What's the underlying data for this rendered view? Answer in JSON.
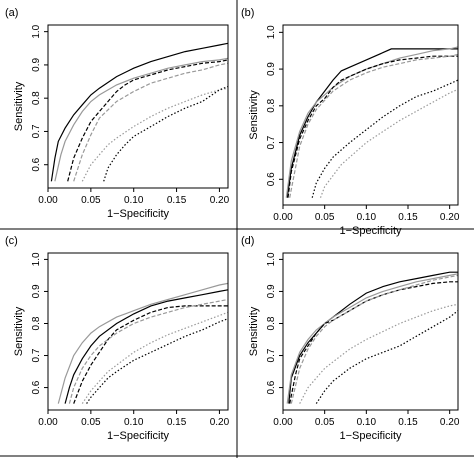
{
  "chart_data": [
    {
      "type": "line",
      "panel_label": "(a)",
      "xlabel": "1−Specificity",
      "ylabel": "Sensitivity",
      "xlim": [
        0,
        0.21
      ],
      "ylim": [
        0.53,
        1.02
      ],
      "x_ticks": [
        "0.00",
        "0.05",
        "0.10",
        "0.15",
        "0.20"
      ],
      "y_ticks": [
        "0.6",
        "0.7",
        "0.8",
        "0.9",
        "1.0"
      ],
      "series": [
        {
          "color": "#000000",
          "dash": "solid",
          "x": [
            0.004,
            0.008,
            0.012,
            0.02,
            0.03,
            0.04,
            0.05,
            0.06,
            0.08,
            0.1,
            0.12,
            0.14,
            0.16,
            0.18,
            0.2,
            0.21
          ],
          "y": [
            0.55,
            0.62,
            0.67,
            0.71,
            0.75,
            0.78,
            0.81,
            0.83,
            0.865,
            0.89,
            0.91,
            0.925,
            0.94,
            0.95,
            0.96,
            0.965
          ]
        },
        {
          "color": "#999999",
          "dash": "solid",
          "x": [
            0.008,
            0.015,
            0.02,
            0.03,
            0.04,
            0.05,
            0.06,
            0.08,
            0.1,
            0.12,
            0.14,
            0.16,
            0.18,
            0.2,
            0.21
          ],
          "y": [
            0.55,
            0.63,
            0.67,
            0.72,
            0.76,
            0.79,
            0.81,
            0.84,
            0.86,
            0.875,
            0.89,
            0.9,
            0.91,
            0.915,
            0.92
          ]
        },
        {
          "color": "#000000",
          "dash": "dash",
          "x": [
            0.023,
            0.03,
            0.04,
            0.05,
            0.06,
            0.07,
            0.08,
            0.09,
            0.1,
            0.12,
            0.14,
            0.16,
            0.18,
            0.2,
            0.21
          ],
          "y": [
            0.55,
            0.62,
            0.68,
            0.73,
            0.76,
            0.79,
            0.82,
            0.84,
            0.855,
            0.87,
            0.885,
            0.895,
            0.905,
            0.91,
            0.915
          ]
        },
        {
          "color": "#999999",
          "dash": "dash",
          "x": [
            0.03,
            0.04,
            0.05,
            0.06,
            0.08,
            0.1,
            0.12,
            0.14,
            0.16,
            0.18,
            0.2,
            0.21
          ],
          "y": [
            0.55,
            0.63,
            0.69,
            0.74,
            0.79,
            0.82,
            0.845,
            0.86,
            0.875,
            0.885,
            0.9,
            0.905
          ]
        },
        {
          "color": "#999999",
          "dash": "dot",
          "x": [
            0.04,
            0.05,
            0.06,
            0.07,
            0.08,
            0.1,
            0.12,
            0.14,
            0.16,
            0.18,
            0.2,
            0.21
          ],
          "y": [
            0.55,
            0.6,
            0.63,
            0.66,
            0.68,
            0.715,
            0.745,
            0.77,
            0.79,
            0.81,
            0.825,
            0.83
          ]
        },
        {
          "color": "#000000",
          "dash": "dot",
          "x": [
            0.065,
            0.07,
            0.08,
            0.09,
            0.1,
            0.12,
            0.14,
            0.16,
            0.18,
            0.2,
            0.21
          ],
          "y": [
            0.55,
            0.59,
            0.63,
            0.66,
            0.685,
            0.715,
            0.745,
            0.77,
            0.79,
            0.825,
            0.835
          ]
        }
      ]
    },
    {
      "type": "line",
      "panel_label": "(b)",
      "xlabel": "1−Specificity",
      "ylabel": "Sensitivity",
      "xlim": [
        0,
        0.21
      ],
      "ylim": [
        0.53,
        1.02
      ],
      "x_ticks": [
        "0.00",
        "0.05",
        "0.10",
        "0.15",
        "0.20"
      ],
      "y_ticks": [
        "0.6",
        "0.7",
        "0.8",
        "0.9",
        "1.0"
      ],
      "series": [
        {
          "color": "#000000",
          "dash": "solid",
          "x": [
            0.005,
            0.01,
            0.02,
            0.03,
            0.04,
            0.05,
            0.06,
            0.07,
            0.08,
            0.1,
            0.12,
            0.13,
            0.14,
            0.16,
            0.18,
            0.2,
            0.21
          ],
          "y": [
            0.55,
            0.63,
            0.72,
            0.77,
            0.81,
            0.84,
            0.87,
            0.895,
            0.905,
            0.925,
            0.945,
            0.955,
            0.955,
            0.955,
            0.955,
            0.955,
            0.955
          ]
        },
        {
          "color": "#999999",
          "dash": "solid",
          "x": [
            0.004,
            0.01,
            0.02,
            0.03,
            0.04,
            0.05,
            0.06,
            0.08,
            0.1,
            0.12,
            0.14,
            0.16,
            0.18,
            0.2,
            0.21
          ],
          "y": [
            0.55,
            0.65,
            0.73,
            0.78,
            0.81,
            0.83,
            0.85,
            0.88,
            0.9,
            0.915,
            0.93,
            0.94,
            0.95,
            0.955,
            0.96
          ]
        },
        {
          "color": "#000000",
          "dash": "dash",
          "x": [
            0.006,
            0.01,
            0.02,
            0.03,
            0.04,
            0.05,
            0.06,
            0.07,
            0.08,
            0.1,
            0.12,
            0.14,
            0.16,
            0.18,
            0.2,
            0.21
          ],
          "y": [
            0.55,
            0.62,
            0.71,
            0.76,
            0.8,
            0.82,
            0.85,
            0.87,
            0.88,
            0.9,
            0.915,
            0.925,
            0.93,
            0.935,
            0.935,
            0.935
          ]
        },
        {
          "color": "#999999",
          "dash": "dash",
          "x": [
            0.008,
            0.02,
            0.03,
            0.04,
            0.06,
            0.08,
            0.1,
            0.12,
            0.14,
            0.16,
            0.18,
            0.2,
            0.21
          ],
          "y": [
            0.55,
            0.69,
            0.75,
            0.79,
            0.84,
            0.87,
            0.89,
            0.905,
            0.915,
            0.925,
            0.93,
            0.935,
            0.94
          ]
        },
        {
          "color": "#000000",
          "dash": "dot",
          "x": [
            0.035,
            0.04,
            0.05,
            0.06,
            0.07,
            0.08,
            0.1,
            0.12,
            0.14,
            0.16,
            0.18,
            0.2,
            0.21
          ],
          "y": [
            0.55,
            0.59,
            0.63,
            0.66,
            0.68,
            0.7,
            0.735,
            0.77,
            0.8,
            0.825,
            0.84,
            0.86,
            0.87
          ]
        },
        {
          "color": "#999999",
          "dash": "dot",
          "x": [
            0.045,
            0.05,
            0.06,
            0.07,
            0.08,
            0.1,
            0.12,
            0.14,
            0.16,
            0.18,
            0.2,
            0.21
          ],
          "y": [
            0.55,
            0.58,
            0.61,
            0.64,
            0.66,
            0.7,
            0.73,
            0.76,
            0.785,
            0.81,
            0.835,
            0.845
          ]
        }
      ]
    },
    {
      "type": "line",
      "panel_label": "(c)",
      "xlabel": "1−Specificity",
      "ylabel": "Sensitivity",
      "xlim": [
        0,
        0.21
      ],
      "ylim": [
        0.53,
        1.02
      ],
      "x_ticks": [
        "0.00",
        "0.05",
        "0.10",
        "0.15",
        "0.20"
      ],
      "y_ticks": [
        "0.6",
        "0.7",
        "0.8",
        "0.9",
        "1.0"
      ],
      "series": [
        {
          "color": "#000000",
          "dash": "solid",
          "x": [
            0.02,
            0.025,
            0.03,
            0.04,
            0.05,
            0.06,
            0.08,
            0.1,
            0.12,
            0.14,
            0.16,
            0.18,
            0.2,
            0.21
          ],
          "y": [
            0.55,
            0.6,
            0.64,
            0.69,
            0.73,
            0.76,
            0.8,
            0.83,
            0.855,
            0.87,
            0.88,
            0.89,
            0.9,
            0.905
          ]
        },
        {
          "color": "#999999",
          "dash": "solid",
          "x": [
            0.012,
            0.02,
            0.03,
            0.04,
            0.05,
            0.06,
            0.08,
            0.1,
            0.12,
            0.14,
            0.16,
            0.18,
            0.2,
            0.21
          ],
          "y": [
            0.55,
            0.63,
            0.7,
            0.74,
            0.77,
            0.79,
            0.82,
            0.84,
            0.86,
            0.875,
            0.89,
            0.905,
            0.92,
            0.925
          ]
        },
        {
          "color": "#000000",
          "dash": "dash",
          "x": [
            0.03,
            0.04,
            0.05,
            0.06,
            0.07,
            0.08,
            0.1,
            0.12,
            0.14,
            0.16,
            0.18,
            0.2,
            0.21
          ],
          "y": [
            0.55,
            0.62,
            0.67,
            0.71,
            0.75,
            0.78,
            0.81,
            0.835,
            0.85,
            0.855,
            0.855,
            0.855,
            0.855
          ]
        },
        {
          "color": "#999999",
          "dash": "dash",
          "x": [
            0.025,
            0.03,
            0.04,
            0.05,
            0.06,
            0.08,
            0.1,
            0.12,
            0.14,
            0.16,
            0.18,
            0.2,
            0.21
          ],
          "y": [
            0.55,
            0.6,
            0.66,
            0.7,
            0.73,
            0.77,
            0.8,
            0.82,
            0.835,
            0.85,
            0.86,
            0.87,
            0.875
          ]
        },
        {
          "color": "#999999",
          "dash": "dot",
          "x": [
            0.04,
            0.05,
            0.06,
            0.07,
            0.08,
            0.1,
            0.12,
            0.14,
            0.16,
            0.18,
            0.2,
            0.21
          ],
          "y": [
            0.55,
            0.59,
            0.62,
            0.65,
            0.67,
            0.71,
            0.74,
            0.765,
            0.785,
            0.805,
            0.825,
            0.835
          ]
        },
        {
          "color": "#000000",
          "dash": "dot",
          "x": [
            0.045,
            0.05,
            0.06,
            0.07,
            0.08,
            0.1,
            0.12,
            0.14,
            0.16,
            0.18,
            0.2,
            0.21
          ],
          "y": [
            0.55,
            0.57,
            0.6,
            0.63,
            0.65,
            0.685,
            0.71,
            0.735,
            0.76,
            0.78,
            0.805,
            0.815
          ]
        }
      ]
    },
    {
      "type": "line",
      "panel_label": "(d)",
      "xlabel": "1−Specificity",
      "ylabel": "Sensitivity",
      "xlim": [
        0,
        0.21
      ],
      "ylim": [
        0.53,
        1.02
      ],
      "x_ticks": [
        "0.00",
        "0.05",
        "0.10",
        "0.15",
        "0.20"
      ],
      "y_ticks": [
        "0.6",
        "0.7",
        "0.8",
        "0.9",
        "1.0"
      ],
      "series": [
        {
          "color": "#000000",
          "dash": "solid",
          "x": [
            0.007,
            0.01,
            0.02,
            0.03,
            0.04,
            0.05,
            0.06,
            0.08,
            0.1,
            0.12,
            0.14,
            0.16,
            0.18,
            0.2,
            0.21
          ],
          "y": [
            0.55,
            0.63,
            0.7,
            0.74,
            0.77,
            0.8,
            0.82,
            0.86,
            0.895,
            0.915,
            0.93,
            0.94,
            0.95,
            0.96,
            0.96
          ]
        },
        {
          "color": "#999999",
          "dash": "solid",
          "x": [
            0.005,
            0.01,
            0.02,
            0.03,
            0.04,
            0.05,
            0.06,
            0.08,
            0.1,
            0.12,
            0.14,
            0.16,
            0.18,
            0.2,
            0.21
          ],
          "y": [
            0.55,
            0.64,
            0.71,
            0.75,
            0.78,
            0.8,
            0.82,
            0.85,
            0.88,
            0.9,
            0.915,
            0.93,
            0.94,
            0.95,
            0.955
          ]
        },
        {
          "color": "#000000",
          "dash": "dash",
          "x": [
            0.008,
            0.015,
            0.02,
            0.03,
            0.04,
            0.05,
            0.06,
            0.08,
            0.1,
            0.12,
            0.14,
            0.16,
            0.18,
            0.2,
            0.21
          ],
          "y": [
            0.55,
            0.64,
            0.69,
            0.73,
            0.77,
            0.8,
            0.81,
            0.84,
            0.87,
            0.89,
            0.905,
            0.915,
            0.925,
            0.93,
            0.93
          ]
        },
        {
          "color": "#999999",
          "dash": "dash",
          "x": [
            0.01,
            0.02,
            0.03,
            0.04,
            0.05,
            0.06,
            0.08,
            0.1,
            0.12,
            0.14,
            0.16,
            0.18,
            0.2,
            0.21
          ],
          "y": [
            0.55,
            0.66,
            0.72,
            0.76,
            0.79,
            0.81,
            0.84,
            0.87,
            0.89,
            0.905,
            0.92,
            0.935,
            0.945,
            0.95
          ]
        },
        {
          "color": "#999999",
          "dash": "dot",
          "x": [
            0.02,
            0.03,
            0.04,
            0.05,
            0.06,
            0.08,
            0.1,
            0.12,
            0.14,
            0.16,
            0.18,
            0.2,
            0.21
          ],
          "y": [
            0.55,
            0.6,
            0.63,
            0.66,
            0.68,
            0.72,
            0.75,
            0.775,
            0.8,
            0.82,
            0.84,
            0.855,
            0.86
          ]
        },
        {
          "color": "#000000",
          "dash": "dot",
          "x": [
            0.04,
            0.05,
            0.06,
            0.07,
            0.08,
            0.1,
            0.12,
            0.14,
            0.16,
            0.18,
            0.2,
            0.21
          ],
          "y": [
            0.55,
            0.59,
            0.62,
            0.64,
            0.66,
            0.69,
            0.71,
            0.73,
            0.76,
            0.79,
            0.82,
            0.84
          ]
        }
      ]
    }
  ]
}
